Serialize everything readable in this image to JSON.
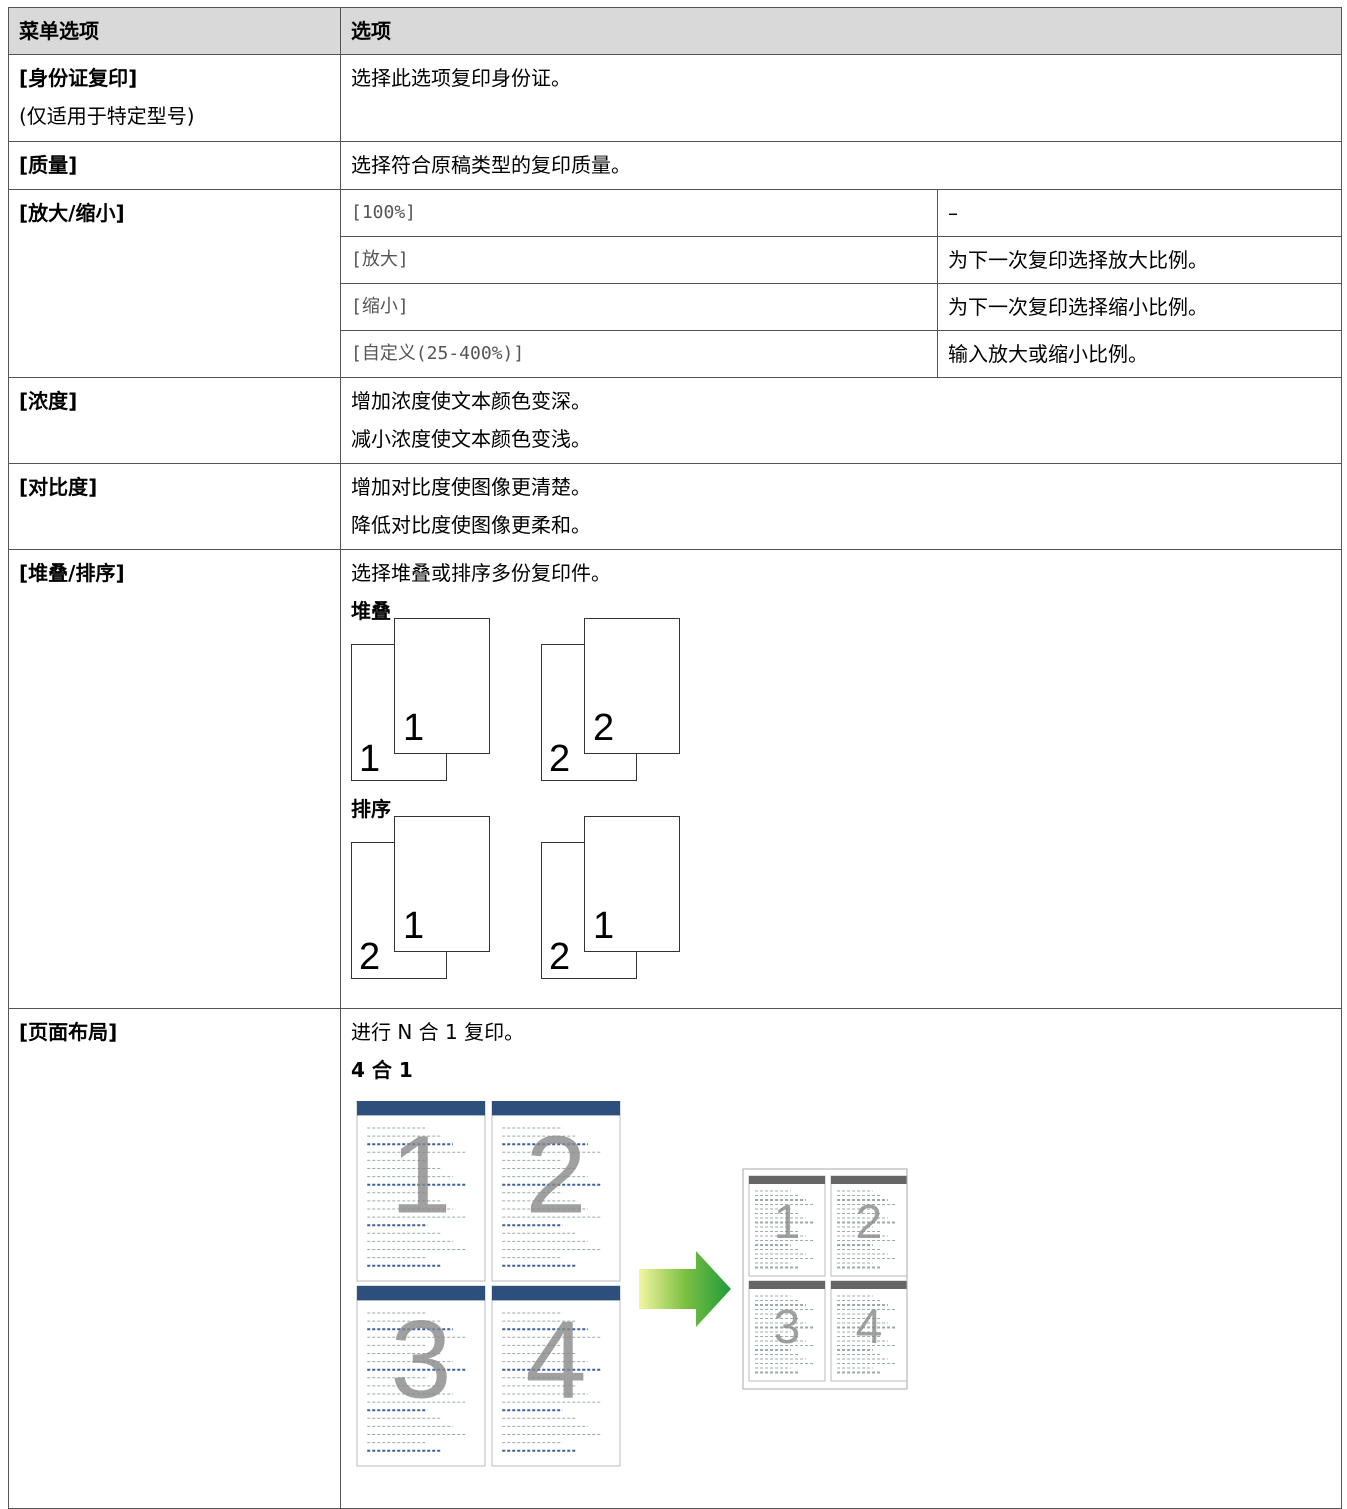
{
  "table": {
    "header": [
      "菜单选项",
      "选项"
    ],
    "rows": [
      {
        "menu": "[身份证复印]",
        "note": "(仅适用于特定型号)",
        "lines": [
          "选择此选项复印身份证。"
        ]
      },
      {
        "menu": "[质量]",
        "lines": [
          "选择符合原稿类型的复印质量。"
        ]
      },
      {
        "menu": "[放大/缩小]",
        "options": [
          [
            "[100%]",
            "–"
          ],
          [
            "[放大]",
            "为下一次复印选择放大比例。"
          ],
          [
            "[缩小]",
            "为下一次复印选择缩小比例。"
          ],
          [
            "[自定义(25-400%)]",
            "输入放大或缩小比例。"
          ]
        ]
      },
      {
        "menu": "[浓度]",
        "lines": [
          "增加浓度使文本颜色变深。",
          "减小浓度使文本颜色变浅。"
        ]
      },
      {
        "menu": "[对比度]",
        "lines": [
          "增加对比度使图像更清楚。",
          "降低对比度使图像更柔和。"
        ]
      },
      {
        "menu": "[堆叠/排序]",
        "lines": [
          "选择堆叠或排序多份复印件。"
        ],
        "sections": [
          {
            "heading": "堆叠",
            "pages": [
              [
                "1",
                "1"
              ],
              [
                "2",
                "2"
              ]
            ]
          },
          {
            "heading": "排序",
            "pages": [
              [
                "2",
                "1"
              ],
              [
                "2",
                "1"
              ]
            ]
          }
        ]
      },
      {
        "menu": "[页面布局]",
        "lines": [
          "进行 N 合 1 复印。"
        ],
        "sections": [
          {
            "heading": "4 合 1",
            "pages": [
              "1",
              "2",
              "3",
              "4"
            ]
          }
        ]
      }
    ]
  }
}
